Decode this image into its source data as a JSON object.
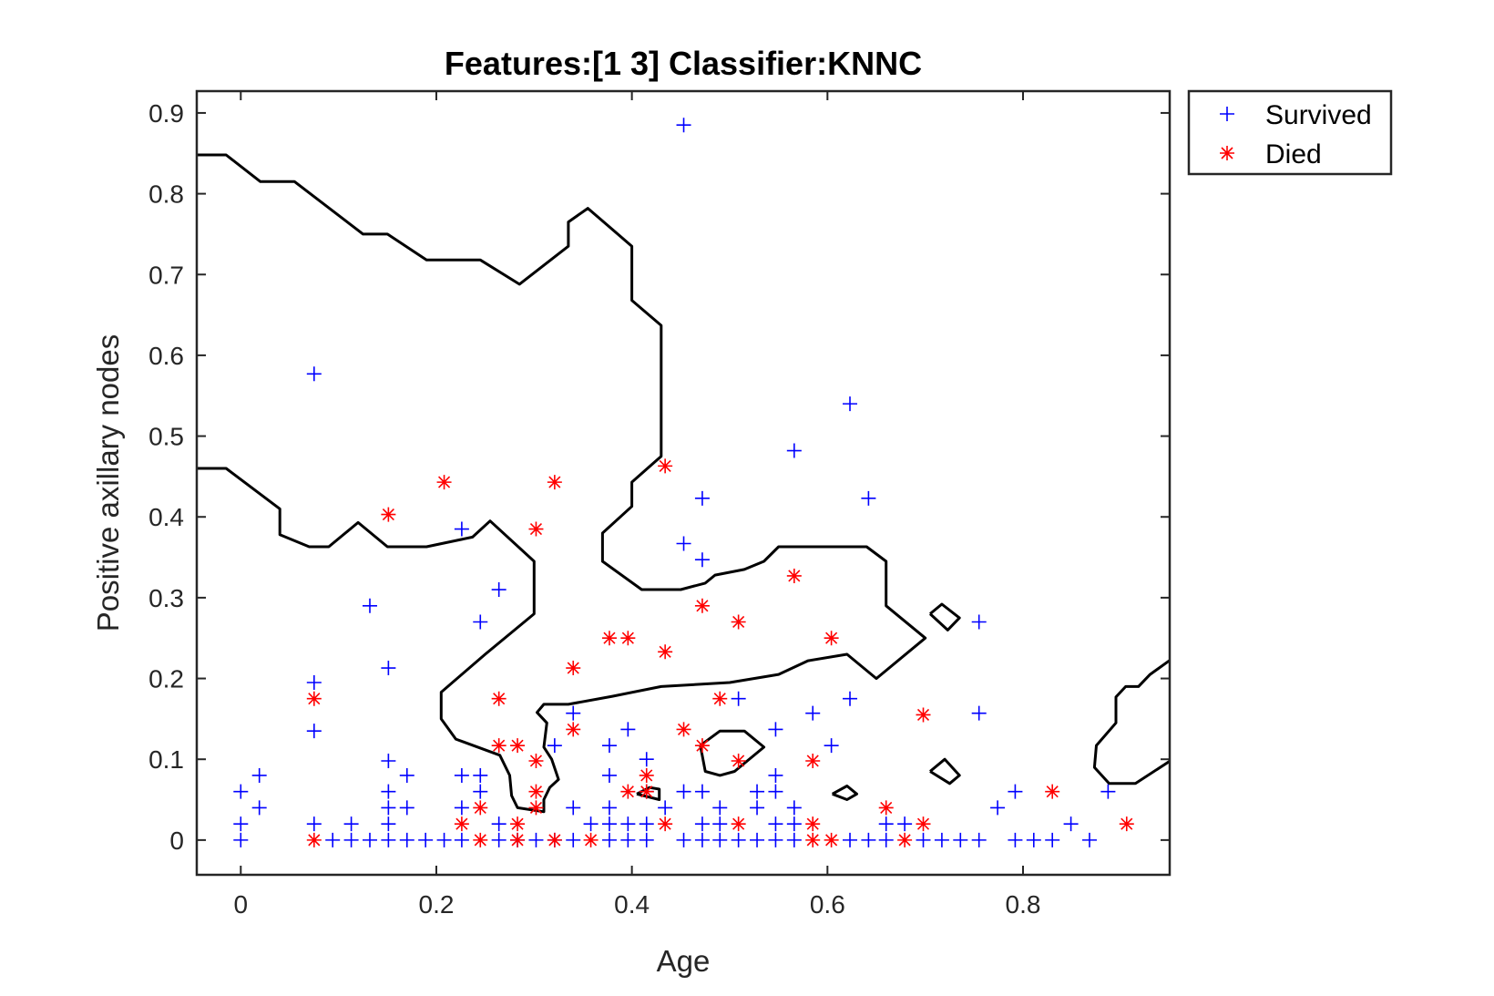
{
  "chart_data": {
    "type": "scatter",
    "title": "Features:[1 3]  Classifier:KNNC",
    "xlabel": "Age",
    "ylabel": "Positive axillary nodes",
    "xlim": [
      -0.045,
      0.95
    ],
    "ylim": [
      -0.043,
      0.927
    ],
    "xticks": [
      0,
      0.2,
      0.4,
      0.6,
      0.8
    ],
    "yticks": [
      0,
      0.1,
      0.2,
      0.3,
      0.4,
      0.5,
      0.6,
      0.7,
      0.8,
      0.9
    ],
    "xtick_labels": [
      "0",
      "0.2",
      "0.4",
      "0.6",
      "0.8"
    ],
    "ytick_labels": [
      "0",
      "0.1",
      "0.2",
      "0.3",
      "0.4",
      "0.5",
      "0.6",
      "0.7",
      "0.8",
      "0.9"
    ],
    "grid": false,
    "legend_position": "outside-top-right",
    "series": [
      {
        "name": "Survived",
        "marker": "plus",
        "color": "#0000ff",
        "points": [
          [
            0,
            0
          ],
          [
            0,
            0.02
          ],
          [
            0,
            0.06
          ],
          [
            0.019,
            0.04
          ],
          [
            0.019,
            0.08
          ],
          [
            0.075,
            0.02
          ],
          [
            0.075,
            0.135
          ],
          [
            0.075,
            0.195
          ],
          [
            0.075,
            0.577
          ],
          [
            0.094,
            0
          ],
          [
            0.113,
            0
          ],
          [
            0.113,
            0.02
          ],
          [
            0.132,
            0
          ],
          [
            0.132,
            0.29
          ],
          [
            0.151,
            0
          ],
          [
            0.151,
            0.02
          ],
          [
            0.151,
            0.04
          ],
          [
            0.151,
            0.06
          ],
          [
            0.151,
            0.098
          ],
          [
            0.151,
            0.213
          ],
          [
            0.17,
            0
          ],
          [
            0.17,
            0.04
          ],
          [
            0.17,
            0.08
          ],
          [
            0.189,
            0
          ],
          [
            0.208,
            0
          ],
          [
            0.226,
            0
          ],
          [
            0.226,
            0.04
          ],
          [
            0.226,
            0.08
          ],
          [
            0.226,
            0.385
          ],
          [
            0.245,
            0.06
          ],
          [
            0.245,
            0.08
          ],
          [
            0.245,
            0.27
          ],
          [
            0.264,
            0
          ],
          [
            0.264,
            0.02
          ],
          [
            0.264,
            0.31
          ],
          [
            0.283,
            0
          ],
          [
            0.302,
            0
          ],
          [
            0.321,
            0
          ],
          [
            0.321,
            0.117
          ],
          [
            0.34,
            0
          ],
          [
            0.34,
            0.04
          ],
          [
            0.34,
            0.157
          ],
          [
            0.358,
            0.02
          ],
          [
            0.377,
            0
          ],
          [
            0.377,
            0.02
          ],
          [
            0.377,
            0.04
          ],
          [
            0.377,
            0.08
          ],
          [
            0.377,
            0.117
          ],
          [
            0.396,
            0
          ],
          [
            0.396,
            0.02
          ],
          [
            0.396,
            0.137
          ],
          [
            0.415,
            0
          ],
          [
            0.415,
            0.02
          ],
          [
            0.415,
            0.06
          ],
          [
            0.415,
            0.1
          ],
          [
            0.434,
            0.04
          ],
          [
            0.453,
            0
          ],
          [
            0.453,
            0.06
          ],
          [
            0.453,
            0.367
          ],
          [
            0.453,
            0.885
          ],
          [
            0.472,
            0
          ],
          [
            0.472,
            0.02
          ],
          [
            0.472,
            0.06
          ],
          [
            0.472,
            0.347
          ],
          [
            0.472,
            0.423
          ],
          [
            0.49,
            0
          ],
          [
            0.49,
            0.02
          ],
          [
            0.49,
            0.04
          ],
          [
            0.509,
            0
          ],
          [
            0.509,
            0.175
          ],
          [
            0.528,
            0
          ],
          [
            0.528,
            0.04
          ],
          [
            0.528,
            0.06
          ],
          [
            0.547,
            0
          ],
          [
            0.547,
            0.02
          ],
          [
            0.547,
            0.06
          ],
          [
            0.547,
            0.08
          ],
          [
            0.547,
            0.137
          ],
          [
            0.566,
            0
          ],
          [
            0.566,
            0.02
          ],
          [
            0.566,
            0.04
          ],
          [
            0.566,
            0.482
          ],
          [
            0.585,
            0.157
          ],
          [
            0.604,
            0.117
          ],
          [
            0.623,
            0
          ],
          [
            0.623,
            0.175
          ],
          [
            0.623,
            0.54
          ],
          [
            0.642,
            0
          ],
          [
            0.642,
            0.423
          ],
          [
            0.66,
            0
          ],
          [
            0.66,
            0.02
          ],
          [
            0.679,
            0.02
          ],
          [
            0.698,
            0
          ],
          [
            0.717,
            0
          ],
          [
            0.736,
            0
          ],
          [
            0.755,
            0
          ],
          [
            0.755,
            0.157
          ],
          [
            0.755,
            0.27
          ],
          [
            0.774,
            0.04
          ],
          [
            0.792,
            0
          ],
          [
            0.792,
            0.06
          ],
          [
            0.811,
            0
          ],
          [
            0.83,
            0
          ],
          [
            0.849,
            0.02
          ],
          [
            0.868,
            0
          ],
          [
            0.887,
            0.06
          ]
        ]
      },
      {
        "name": "Died",
        "marker": "asterisk",
        "color": "#ff0000",
        "points": [
          [
            0.075,
            0
          ],
          [
            0.075,
            0.175
          ],
          [
            0.151,
            0.403
          ],
          [
            0.208,
            0.443
          ],
          [
            0.226,
            0.02
          ],
          [
            0.245,
            0
          ],
          [
            0.245,
            0.04
          ],
          [
            0.264,
            0.117
          ],
          [
            0.264,
            0.175
          ],
          [
            0.283,
            0
          ],
          [
            0.283,
            0.02
          ],
          [
            0.283,
            0.117
          ],
          [
            0.302,
            0.04
          ],
          [
            0.302,
            0.06
          ],
          [
            0.302,
            0.098
          ],
          [
            0.302,
            0.385
          ],
          [
            0.321,
            0
          ],
          [
            0.321,
            0.443
          ],
          [
            0.34,
            0.137
          ],
          [
            0.34,
            0.213
          ],
          [
            0.358,
            0
          ],
          [
            0.377,
            0.25
          ],
          [
            0.396,
            0.06
          ],
          [
            0.396,
            0.25
          ],
          [
            0.415,
            0.06
          ],
          [
            0.415,
            0.08
          ],
          [
            0.434,
            0.02
          ],
          [
            0.434,
            0.233
          ],
          [
            0.434,
            0.463
          ],
          [
            0.453,
            0.137
          ],
          [
            0.472,
            0.117
          ],
          [
            0.472,
            0.29
          ],
          [
            0.49,
            0.175
          ],
          [
            0.509,
            0.02
          ],
          [
            0.509,
            0.098
          ],
          [
            0.509,
            0.27
          ],
          [
            0.566,
            0.327
          ],
          [
            0.585,
            0
          ],
          [
            0.585,
            0.02
          ],
          [
            0.585,
            0.098
          ],
          [
            0.604,
            0
          ],
          [
            0.604,
            0.25
          ],
          [
            0.66,
            0.04
          ],
          [
            0.679,
            0
          ],
          [
            0.698,
            0.02
          ],
          [
            0.698,
            0.155
          ],
          [
            0.83,
            0.06
          ],
          [
            0.906,
            0.02
          ]
        ]
      }
    ],
    "decision_boundary": [
      [
        [
          -0.045,
          0.848
        ],
        [
          -0.015,
          0.848
        ],
        [
          0.02,
          0.815
        ],
        [
          0.055,
          0.815
        ],
        [
          0.125,
          0.75
        ],
        [
          0.15,
          0.75
        ],
        [
          0.19,
          0.718
        ],
        [
          0.245,
          0.718
        ],
        [
          0.285,
          0.688
        ],
        [
          0.335,
          0.735
        ],
        [
          0.335,
          0.765
        ],
        [
          0.355,
          0.782
        ],
        [
          0.4,
          0.735
        ],
        [
          0.4,
          0.668
        ],
        [
          0.43,
          0.637
        ],
        [
          0.43,
          0.475
        ],
        [
          0.4,
          0.443
        ],
        [
          0.4,
          0.413
        ],
        [
          0.37,
          0.38
        ],
        [
          0.37,
          0.345
        ],
        [
          0.41,
          0.31
        ],
        [
          0.45,
          0.31
        ],
        [
          0.475,
          0.318
        ],
        [
          0.485,
          0.328
        ],
        [
          0.515,
          0.335
        ],
        [
          0.535,
          0.345
        ],
        [
          0.55,
          0.363
        ],
        [
          0.64,
          0.363
        ],
        [
          0.66,
          0.345
        ],
        [
          0.66,
          0.29
        ],
        [
          0.7,
          0.25
        ],
        [
          0.65,
          0.2
        ],
        [
          0.62,
          0.23
        ],
        [
          0.58,
          0.222
        ],
        [
          0.55,
          0.205
        ],
        [
          0.5,
          0.195
        ],
        [
          0.43,
          0.19
        ],
        [
          0.38,
          0.178
        ],
        [
          0.335,
          0.168
        ],
        [
          0.31,
          0.168
        ],
        [
          0.303,
          0.158
        ],
        [
          0.313,
          0.145
        ],
        [
          0.31,
          0.115
        ],
        [
          0.318,
          0.1
        ],
        [
          0.325,
          0.075
        ],
        [
          0.316,
          0.065
        ],
        [
          0.31,
          0.05
        ],
        [
          0.31,
          0.035
        ],
        [
          0.283,
          0.04
        ],
        [
          0.277,
          0.055
        ],
        [
          0.275,
          0.08
        ],
        [
          0.265,
          0.105
        ],
        [
          0.22,
          0.125
        ],
        [
          0.205,
          0.15
        ],
        [
          0.205,
          0.183
        ],
        [
          0.25,
          0.23
        ],
        [
          0.3,
          0.28
        ],
        [
          0.3,
          0.345
        ],
        [
          0.255,
          0.395
        ],
        [
          0.237,
          0.375
        ],
        [
          0.19,
          0.363
        ],
        [
          0.15,
          0.363
        ],
        [
          0.12,
          0.393
        ],
        [
          0.09,
          0.363
        ],
        [
          0.07,
          0.363
        ],
        [
          0.04,
          0.378
        ],
        [
          0.04,
          0.41
        ],
        [
          -0.015,
          0.46
        ],
        [
          -0.045,
          0.46
        ]
      ],
      [
        [
          0.953,
          0.225
        ],
        [
          0.93,
          0.205
        ],
        [
          0.918,
          0.19
        ],
        [
          0.905,
          0.19
        ],
        [
          0.895,
          0.177
        ],
        [
          0.895,
          0.145
        ],
        [
          0.875,
          0.117
        ],
        [
          0.873,
          0.09
        ],
        [
          0.888,
          0.07
        ],
        [
          0.915,
          0.07
        ],
        [
          0.953,
          0.1
        ]
      ],
      [
        [
          0.705,
          0.28
        ],
        [
          0.717,
          0.292
        ],
        [
          0.735,
          0.275
        ],
        [
          0.723,
          0.26
        ],
        [
          0.705,
          0.28
        ]
      ],
      [
        [
          0.705,
          0.085
        ],
        [
          0.72,
          0.1
        ],
        [
          0.735,
          0.08
        ],
        [
          0.725,
          0.07
        ],
        [
          0.705,
          0.085
        ]
      ],
      [
        [
          0.405,
          0.057
        ],
        [
          0.418,
          0.065
        ],
        [
          0.428,
          0.063
        ],
        [
          0.428,
          0.05
        ],
        [
          0.405,
          0.057
        ]
      ],
      [
        [
          0.605,
          0.057
        ],
        [
          0.62,
          0.067
        ],
        [
          0.63,
          0.057
        ],
        [
          0.62,
          0.05
        ],
        [
          0.605,
          0.057
        ]
      ],
      [
        [
          0.47,
          0.117
        ],
        [
          0.49,
          0.135
        ],
        [
          0.515,
          0.135
        ],
        [
          0.535,
          0.115
        ],
        [
          0.515,
          0.095
        ],
        [
          0.505,
          0.085
        ],
        [
          0.49,
          0.08
        ],
        [
          0.475,
          0.085
        ],
        [
          0.47,
          0.117
        ]
      ]
    ]
  }
}
